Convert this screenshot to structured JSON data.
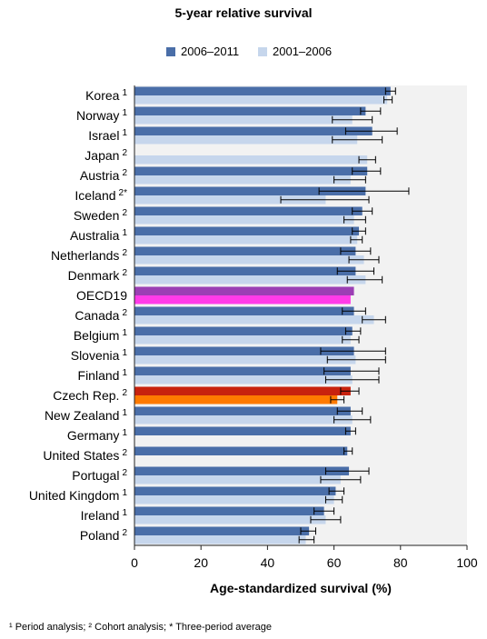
{
  "chart_data": {
    "type": "bar",
    "orientation": "horizontal",
    "title": "5-year relative survival",
    "xlabel": "Age-standardized survival (%)",
    "xlim": [
      0,
      100
    ],
    "xticks": [
      "0",
      "20",
      "40",
      "60",
      "80",
      "100"
    ],
    "grid": false,
    "legend_position": "top",
    "series": [
      {
        "name": "2006–2011",
        "color": "#4a6ea8"
      },
      {
        "name": "2001–2006",
        "color": "#c6d6ec"
      }
    ],
    "categories": [
      {
        "label": "Korea",
        "note": "1",
        "v1": 77,
        "e1": [
          75.5,
          78.5
        ],
        "v2": 76,
        "e2": [
          75,
          77.5
        ],
        "highlight": null
      },
      {
        "label": "Norway",
        "note": "1",
        "v1": 69.5,
        "e1": [
          68,
          74
        ],
        "v2": 65.5,
        "e2": [
          59.5,
          71.5
        ],
        "highlight": null
      },
      {
        "label": "Israel",
        "note": "1",
        "v1": 71.5,
        "e1": [
          63.5,
          79
        ],
        "v2": 67,
        "e2": [
          59.5,
          74.5
        ],
        "highlight": null
      },
      {
        "label": "Japan",
        "note": "2",
        "v1": null,
        "e1": null,
        "v2": 70,
        "e2": [
          67.5,
          72.5
        ],
        "highlight": null
      },
      {
        "label": "Austria",
        "note": "2",
        "v1": 70,
        "e1": [
          65.5,
          74
        ],
        "v2": 65,
        "e2": [
          60,
          69.5
        ],
        "highlight": null
      },
      {
        "label": "Iceland",
        "note": "2*",
        "v1": 69.5,
        "e1": [
          55.5,
          82.5
        ],
        "v2": 57.5,
        "e2": [
          44,
          70.5
        ],
        "highlight": null
      },
      {
        "label": "Sweden",
        "note": "2",
        "v1": 68.5,
        "e1": [
          65.5,
          71.5
        ],
        "v2": 66,
        "e2": [
          63,
          69.5
        ],
        "highlight": null
      },
      {
        "label": "Australia",
        "note": "1",
        "v1": 67.5,
        "e1": [
          65.5,
          69.5
        ],
        "v2": 67,
        "e2": [
          65,
          68.5
        ],
        "highlight": null
      },
      {
        "label": "Netherlands",
        "note": "2",
        "v1": 66.5,
        "e1": [
          62,
          71
        ],
        "v2": 69,
        "e2": [
          64.5,
          73.5
        ],
        "highlight": null
      },
      {
        "label": "Denmark",
        "note": "2",
        "v1": 66.5,
        "e1": [
          61,
          72
        ],
        "v2": 69.5,
        "e2": [
          64,
          74.5
        ],
        "highlight": null
      },
      {
        "label": "OECD19",
        "note": "",
        "v1": 66,
        "e1": null,
        "v2": 65,
        "e2": null,
        "highlight": [
          "#9b3fb4",
          "#ff3be8"
        ]
      },
      {
        "label": "Canada",
        "note": "2",
        "v1": 66,
        "e1": [
          62.5,
          69.5
        ],
        "v2": 72,
        "e2": [
          68.5,
          75.5
        ],
        "highlight": null
      },
      {
        "label": "Belgium",
        "note": "1",
        "v1": 65.5,
        "e1": [
          63.5,
          68
        ],
        "v2": 65,
        "e2": [
          62.5,
          67.5
        ],
        "highlight": null
      },
      {
        "label": "Slovenia",
        "note": "1",
        "v1": 66,
        "e1": [
          56,
          75.5
        ],
        "v2": 66.5,
        "e2": [
          58,
          75.5
        ],
        "highlight": null
      },
      {
        "label": "Finland",
        "note": "1",
        "v1": 65,
        "e1": [
          57,
          73.5
        ],
        "v2": 65.5,
        "e2": [
          57.5,
          73.5
        ],
        "highlight": null
      },
      {
        "label": "Czech Rep.",
        "note": "2",
        "v1": 65,
        "e1": [
          62,
          67.5
        ],
        "v2": 61,
        "e2": [
          59,
          63
        ],
        "highlight": [
          "#c8220e",
          "#ff7a00"
        ]
      },
      {
        "label": "New Zealand",
        "note": "1",
        "v1": 65,
        "e1": [
          61,
          68.5
        ],
        "v2": 65.5,
        "e2": [
          60,
          71
        ],
        "highlight": null
      },
      {
        "label": "Germany",
        "note": "1",
        "v1": 65,
        "e1": [
          63.5,
          66.5
        ],
        "v2": null,
        "e2": null,
        "highlight": null
      },
      {
        "label": "United States",
        "note": "2",
        "v1": 64,
        "e1": [
          63,
          65.5
        ],
        "v2": null,
        "e2": null,
        "highlight": null
      },
      {
        "label": "Portugal",
        "note": "2",
        "v1": 64.5,
        "e1": [
          57.5,
          70.5
        ],
        "v2": 62,
        "e2": [
          56,
          68
        ],
        "highlight": null
      },
      {
        "label": "United Kingdom",
        "note": "1",
        "v1": 60.5,
        "e1": [
          58.5,
          63
        ],
        "v2": 60,
        "e2": [
          57.5,
          62.5
        ],
        "highlight": null
      },
      {
        "label": "Ireland",
        "note": "1",
        "v1": 57,
        "e1": [
          54,
          60
        ],
        "v2": 57.5,
        "e2": [
          53,
          62
        ],
        "highlight": null
      },
      {
        "label": "Poland",
        "note": "2",
        "v1": 52.5,
        "e1": [
          50,
          54.5
        ],
        "v2": 51.5,
        "e2": [
          49.5,
          54
        ],
        "highlight": null
      }
    ]
  },
  "footnote": "¹ Period analysis; ² Cohort analysis; * Three-period average"
}
